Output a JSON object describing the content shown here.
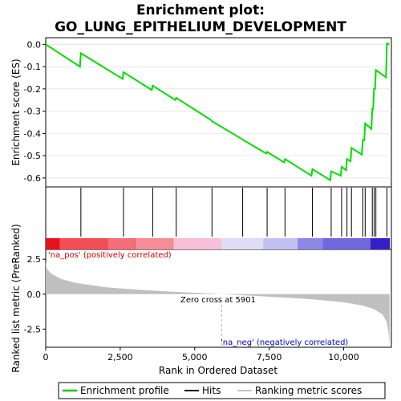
{
  "chart_data": {
    "type": "line",
    "title_line1": "Enrichment plot:",
    "title_line2": "GO_LUNG_EPITHELIUM_DEVELOPMENT",
    "xlabel": "Rank in Ordered Dataset",
    "ylabel_top": "Enrichment score (ES)",
    "ylabel_bottom": "Ranked list metric (PreRanked)",
    "x_range": [
      0,
      11600
    ],
    "x_ticks": [
      0,
      2500,
      5000,
      7500,
      10000
    ],
    "x_tick_labels": [
      "0",
      "2,500",
      "5,000",
      "7,500",
      "10,000"
    ],
    "es_ylim": [
      -0.64,
      0.03
    ],
    "es_ticks": [
      0.0,
      -0.1,
      -0.2,
      -0.3,
      -0.4,
      -0.5,
      -0.6
    ],
    "es_tick_labels": [
      "0.0",
      "-0.1",
      "-0.2",
      "-0.3",
      "-0.4",
      "-0.5",
      "-0.6"
    ],
    "metric_ylim": [
      -3.8,
      3.2
    ],
    "metric_ticks": [
      2.5,
      0.0,
      -2.5
    ],
    "metric_tick_labels": [
      "2.5",
      "0.0",
      "-2.5"
    ],
    "hits": [
      1180,
      2610,
      3590,
      4380,
      5580,
      6610,
      7430,
      8030,
      8950,
      9580,
      9930,
      10110,
      10260,
      10640,
      10720,
      10960,
      11020,
      11080,
      11450
    ],
    "es_curve": [
      {
        "x": 0,
        "y": 0.0
      },
      {
        "x": 1150,
        "y": -0.1
      },
      {
        "x": 1180,
        "y": -0.04
      },
      {
        "x": 2580,
        "y": -0.155
      },
      {
        "x": 2610,
        "y": -0.125
      },
      {
        "x": 3560,
        "y": -0.205
      },
      {
        "x": 3590,
        "y": -0.185
      },
      {
        "x": 4350,
        "y": -0.25
      },
      {
        "x": 4380,
        "y": -0.24
      },
      {
        "x": 5550,
        "y": -0.34
      },
      {
        "x": 5580,
        "y": -0.345
      },
      {
        "x": 6580,
        "y": -0.425
      },
      {
        "x": 6610,
        "y": -0.428
      },
      {
        "x": 7400,
        "y": -0.49
      },
      {
        "x": 7430,
        "y": -0.483
      },
      {
        "x": 8000,
        "y": -0.53
      },
      {
        "x": 8030,
        "y": -0.515
      },
      {
        "x": 8920,
        "y": -0.59
      },
      {
        "x": 8950,
        "y": -0.56
      },
      {
        "x": 9550,
        "y": -0.61
      },
      {
        "x": 9580,
        "y": -0.57
      },
      {
        "x": 9900,
        "y": -0.59
      },
      {
        "x": 9930,
        "y": -0.55
      },
      {
        "x": 10080,
        "y": -0.565
      },
      {
        "x": 10110,
        "y": -0.515
      },
      {
        "x": 10230,
        "y": -0.525
      },
      {
        "x": 10260,
        "y": -0.465
      },
      {
        "x": 10610,
        "y": -0.495
      },
      {
        "x": 10640,
        "y": -0.43
      },
      {
        "x": 10690,
        "y": -0.43
      },
      {
        "x": 10720,
        "y": -0.355
      },
      {
        "x": 10930,
        "y": -0.38
      },
      {
        "x": 10960,
        "y": -0.29
      },
      {
        "x": 10990,
        "y": -0.29
      },
      {
        "x": 11020,
        "y": -0.2
      },
      {
        "x": 11050,
        "y": -0.2
      },
      {
        "x": 11080,
        "y": -0.115
      },
      {
        "x": 11420,
        "y": -0.148
      },
      {
        "x": 11450,
        "y": 0.004
      },
      {
        "x": 11530,
        "y": 0.0
      }
    ],
    "metric_curve": [
      {
        "x": 0,
        "y": 2.3
      },
      {
        "x": 60,
        "y": 1.75
      },
      {
        "x": 200,
        "y": 1.45
      },
      {
        "x": 500,
        "y": 1.1
      },
      {
        "x": 1000,
        "y": 0.8
      },
      {
        "x": 2000,
        "y": 0.5
      },
      {
        "x": 3000,
        "y": 0.33
      },
      {
        "x": 4000,
        "y": 0.2
      },
      {
        "x": 5000,
        "y": 0.1
      },
      {
        "x": 5901,
        "y": 0.0
      },
      {
        "x": 7000,
        "y": -0.12
      },
      {
        "x": 8000,
        "y": -0.24
      },
      {
        "x": 9000,
        "y": -0.38
      },
      {
        "x": 10000,
        "y": -0.58
      },
      {
        "x": 10600,
        "y": -0.8
      },
      {
        "x": 11000,
        "y": -1.05
      },
      {
        "x": 11300,
        "y": -1.45
      },
      {
        "x": 11450,
        "y": -2.0
      },
      {
        "x": 11520,
        "y": -3.0
      },
      {
        "x": 11540,
        "y": -3.6
      }
    ],
    "zero_cross_x": 5901,
    "zero_cross_label": "Zero cross at 5901",
    "pos_label": "'na_pos' (positively correlated)",
    "neg_label": "'na_neg' (negatively correlated)",
    "heatmap_segments": [
      {
        "from": 0,
        "to": 480,
        "color": "#e6131d"
      },
      {
        "from": 480,
        "to": 2100,
        "color": "#f24e55"
      },
      {
        "from": 2100,
        "to": 3050,
        "color": "#f36e76"
      },
      {
        "from": 3050,
        "to": 4300,
        "color": "#f58c96"
      },
      {
        "from": 4300,
        "to": 5900,
        "color": "#f8c0d8"
      },
      {
        "from": 5900,
        "to": 7300,
        "color": "#dedcf6"
      },
      {
        "from": 7300,
        "to": 8450,
        "color": "#c2c0f0"
      },
      {
        "from": 8450,
        "to": 9300,
        "color": "#8c88e6"
      },
      {
        "from": 9300,
        "to": 10900,
        "color": "#6f68de"
      },
      {
        "from": 10900,
        "to": 11550,
        "color": "#3520c8"
      }
    ],
    "legend": [
      {
        "label": "Enrichment profile",
        "color": "#00cc00",
        "kind": "line"
      },
      {
        "label": "Hits",
        "color": "#000000",
        "kind": "line"
      },
      {
        "label": "Ranking metric scores",
        "color": "#c0c0c0",
        "kind": "line"
      }
    ],
    "colors": {
      "es_line": "#00dd00",
      "metric_fill": "#c0c0c0",
      "pos_text": "#cc0000",
      "neg_text": "#0000cc",
      "zero_line": "#aaaaaa"
    }
  }
}
